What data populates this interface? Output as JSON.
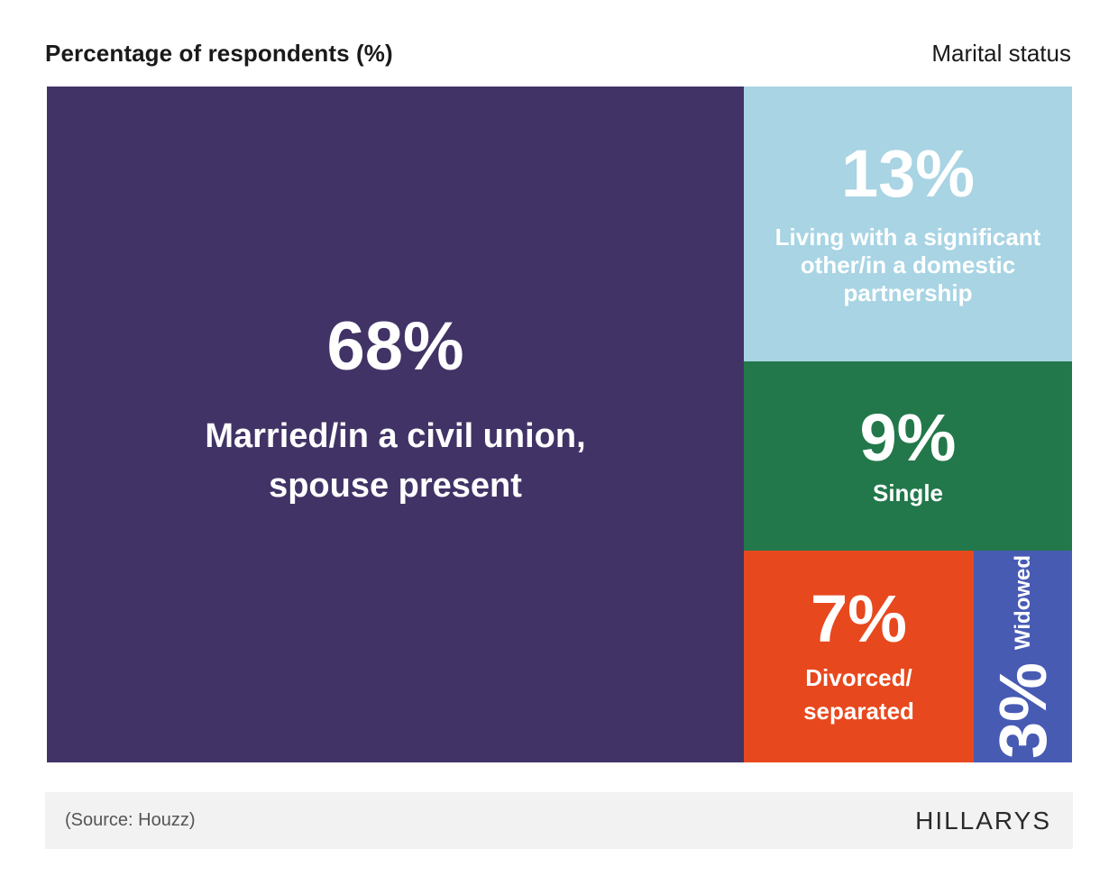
{
  "header": {
    "title": "Percentage of respondents (%)",
    "subtitle": "Marital status"
  },
  "chart_data": {
    "type": "treemap",
    "title": "Percentage of respondents (%)",
    "subtitle": "Marital status",
    "unit": "%",
    "items": [
      {
        "label": "Married/in a civil union, spouse present",
        "value": 68,
        "value_label": "68%",
        "color": "#413366"
      },
      {
        "label": "Living with a significant other/in a domestic partnership",
        "value": 13,
        "value_label": "13%",
        "color": "#a8d4e4"
      },
      {
        "label": "Single",
        "value": 9,
        "value_label": "9%",
        "color": "#22784a"
      },
      {
        "label": "Divorced/ separated",
        "value": 7,
        "value_label": "7%",
        "color": "#e8481e"
      },
      {
        "label": "Widowed",
        "value": 3,
        "value_label": "3%",
        "color": "#475bb3"
      }
    ]
  },
  "footer": {
    "source": "(Source: Houzz)",
    "brand": "HILLARYS"
  }
}
